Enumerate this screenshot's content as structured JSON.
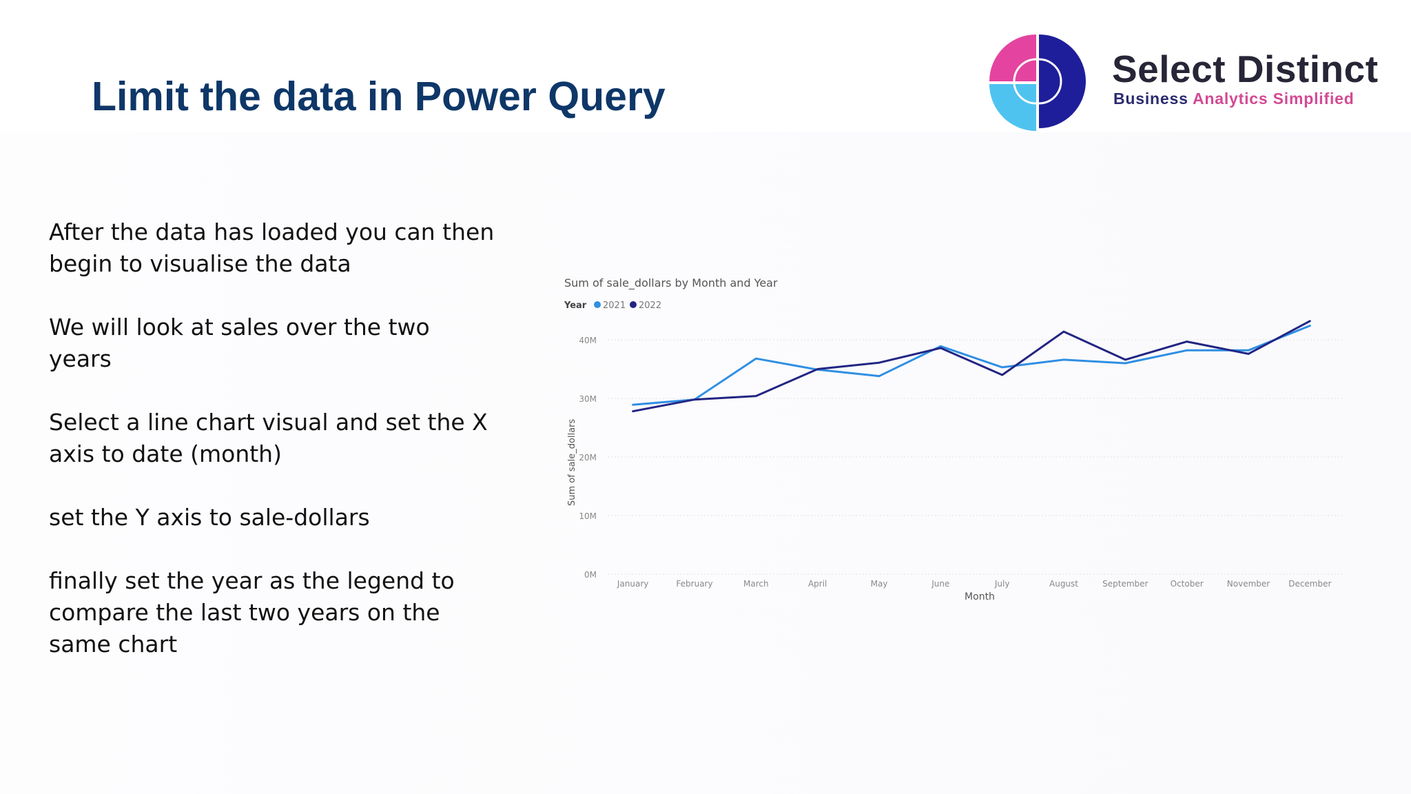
{
  "slide": {
    "title": "Limit the data in Power Query"
  },
  "logo": {
    "name": "Select Distinct",
    "tagline_part1": "Business ",
    "tagline_part2": "Analytics Simplified",
    "colors": {
      "pink": "#e4449f",
      "cyan": "#4fc3ef",
      "navy": "#1e1e9a",
      "text": "#272637"
    }
  },
  "body_text": {
    "p1": "After the data has loaded you can then begin to visualise the data",
    "p2": "We will look at sales over the two years",
    "p3": "Select a line chart visual and set the X axis to date (month)",
    "p4": "set the Y axis to sale-dollars",
    "p5": "finally set the year as the legend to compare the last two years on the same chart"
  },
  "chart_data": {
    "type": "line",
    "title": "Sum of sale_dollars by Month and Year",
    "legend_title": "Year",
    "legend_position": "top-left",
    "xlabel": "Month",
    "ylabel": "Sum of sale_dollars",
    "ylim": [
      0,
      40000000
    ],
    "yticks": [
      "0M",
      "10M",
      "20M",
      "30M",
      "40M"
    ],
    "grid": true,
    "categories": [
      "January",
      "February",
      "March",
      "April",
      "May",
      "June",
      "July",
      "August",
      "September",
      "October",
      "November",
      "December"
    ],
    "series": [
      {
        "name": "2021",
        "color": "#2f8fe3",
        "values": [
          28900000,
          29800000,
          36800000,
          34900000,
          33800000,
          38900000,
          35300000,
          36600000,
          36000000,
          38200000,
          38200000,
          42400000
        ]
      },
      {
        "name": "2022",
        "color": "#222583",
        "values": [
          27800000,
          29800000,
          30400000,
          35000000,
          36100000,
          38600000,
          34000000,
          41400000,
          36600000,
          39700000,
          37600000,
          43200000
        ]
      }
    ]
  }
}
